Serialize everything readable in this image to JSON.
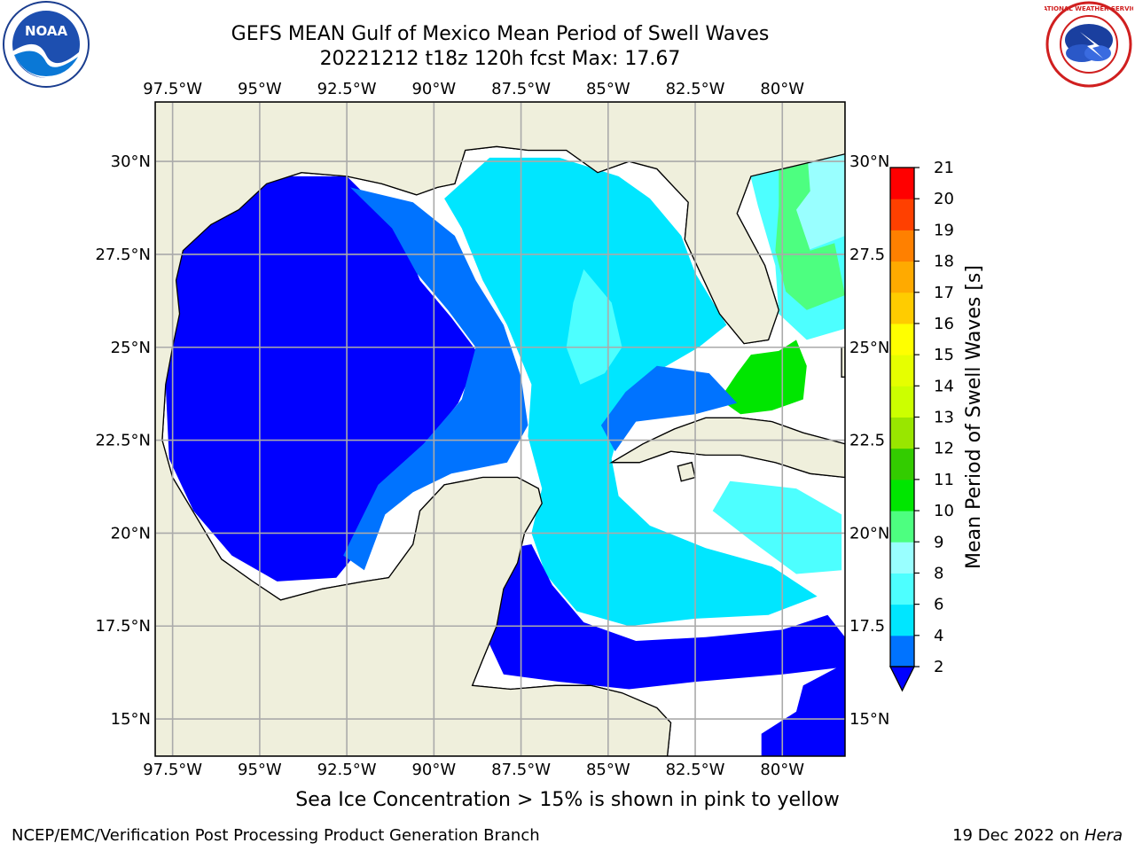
{
  "header": {
    "title_line1": "GEFS MEAN Gulf of Mexico Mean Period of Swell Waves",
    "title_line2": "20221212 t18z 120h fcst   Max: 17.67"
  },
  "logos": {
    "left": {
      "text": "NOAA",
      "icon": "noaa-logo-icon"
    },
    "right": {
      "text": "NATIONAL WEATHER SERVICE",
      "icon": "nws-logo-icon"
    }
  },
  "map": {
    "lon_labels": [
      "97.5°W",
      "95°W",
      "92.5°W",
      "90°W",
      "87.5°W",
      "85°W",
      "82.5°W",
      "80°W"
    ],
    "lat_labels_left": [
      "30°N",
      "27.5°N",
      "25°N",
      "22.5°N",
      "20°N",
      "17.5°N",
      "15°N"
    ],
    "lat_labels_right": [
      "30°N",
      "27.5",
      "25°N",
      "22.5",
      "20°N",
      "17.5",
      "15°N"
    ],
    "extent": {
      "lon_min": -98,
      "lon_max": -78.2,
      "lat_min": 14,
      "lat_max": 31.6
    }
  },
  "colorbar": {
    "label": "Mean Period of Swell Waves [s]",
    "ticks": [
      "2",
      "4",
      "6",
      "8",
      "9",
      "10",
      "11",
      "12",
      "13",
      "14",
      "15",
      "16",
      "17",
      "18",
      "19",
      "20",
      "21"
    ],
    "colors": [
      "#0000ff",
      "#0073ff",
      "#00e6ff",
      "#4dffff",
      "#99ffff",
      "#4dff80",
      "#00e600",
      "#33cc00",
      "#99e600",
      "#ccff00",
      "#e6ff00",
      "#ffff00",
      "#ffcc00",
      "#ffaa00",
      "#ff8000",
      "#ff4000",
      "#ff0000"
    ],
    "extend": "min"
  },
  "subtitle": "Sea Ice Concentration > 15% is shown in pink to yellow",
  "footer": {
    "left": "NCEP/EMC/Verification Post Processing Product Generation Branch",
    "date": "19 Dec 2022 on ",
    "host": "Hera"
  }
}
